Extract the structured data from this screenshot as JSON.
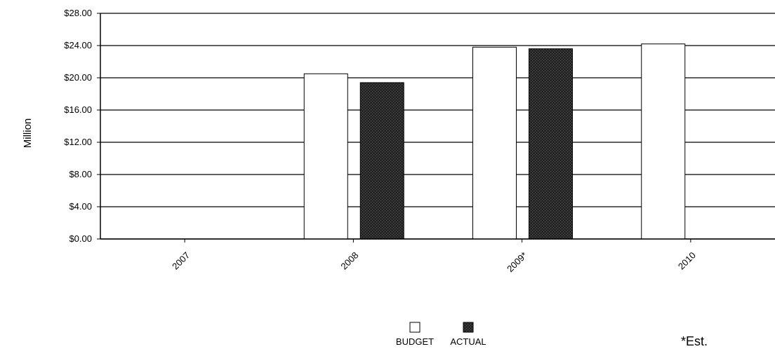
{
  "chart_data": {
    "type": "bar",
    "categories": [
      "2007",
      "2008",
      "2009*",
      "2010"
    ],
    "series": [
      {
        "name": "BUDGET",
        "values": [
          0,
          20.5,
          23.8,
          24.2
        ],
        "color": "#ffffff"
      },
      {
        "name": "ACTUAL",
        "values": [
          0,
          19.4,
          23.6,
          null
        ],
        "color": "#2b2b2b"
      }
    ],
    "ylabel": "Million",
    "ylim": [
      0,
      28
    ],
    "y_ticks": [
      "$0.00",
      "$4.00",
      "$8.00",
      "$12.00",
      "$16.00",
      "$20.00",
      "$24.00",
      "$28.00"
    ],
    "y_tick_values": [
      0,
      4,
      8,
      12,
      16,
      20,
      24,
      28
    ],
    "grid": true,
    "legend_position": "bottom-center",
    "note": "*Est."
  }
}
